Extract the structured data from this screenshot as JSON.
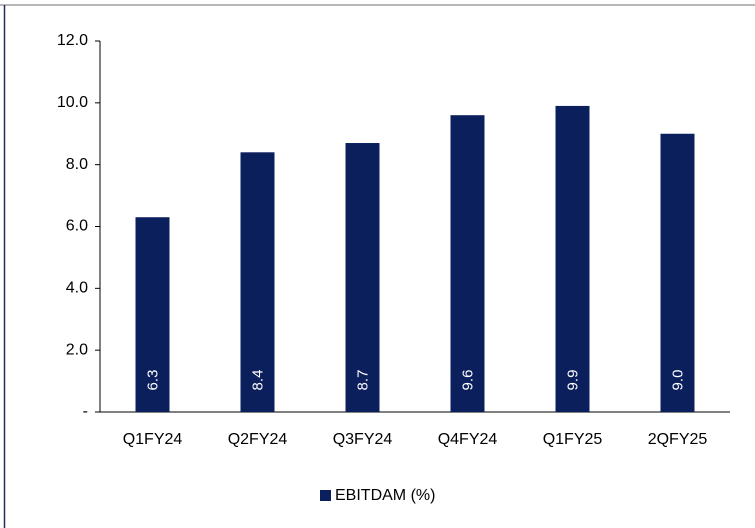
{
  "chart_data": {
    "type": "bar",
    "categories": [
      "Q1FY24",
      "Q2FY24",
      "Q3FY24",
      "Q4FY24",
      "Q1FY25",
      "2QFY25"
    ],
    "series": [
      {
        "name": "EBITDAM (%)",
        "color": "#0b1f5c",
        "values": [
          6.3,
          8.4,
          8.7,
          9.6,
          9.9,
          9.0
        ],
        "value_labels": [
          "6.3",
          "8.4",
          "8.7",
          "9.6",
          "9.9",
          "9.0"
        ]
      }
    ],
    "ylim": [
      0,
      12
    ],
    "yticks": [
      {
        "value": 0,
        "label": "-"
      },
      {
        "value": 2,
        "label": "2.0"
      },
      {
        "value": 4,
        "label": "4.0"
      },
      {
        "value": 6,
        "label": "6.0"
      },
      {
        "value": 8,
        "label": "8.0"
      },
      {
        "value": 10,
        "label": "10.0"
      },
      {
        "value": 12,
        "label": "12.0"
      }
    ],
    "grid": false,
    "legend": "bottom"
  }
}
